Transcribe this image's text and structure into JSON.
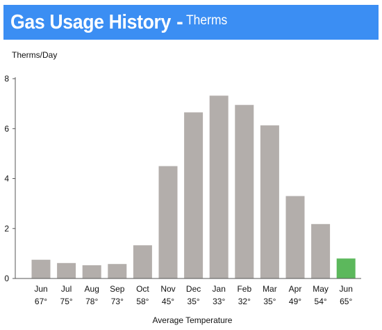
{
  "header": {
    "title": "Gas Usage History",
    "separator": "-",
    "unit": "Therms"
  },
  "chart_data": {
    "type": "bar",
    "title": "Gas Usage History",
    "subtitle": "Therms",
    "ylabel": "Therms/Day",
    "xlabel": "Average Temperature",
    "ylim": [
      0,
      8
    ],
    "yticks": [
      "0",
      "2",
      "4",
      "6",
      "8"
    ],
    "grid": false,
    "categories": [
      "Jun",
      "Jul",
      "Aug",
      "Sep",
      "Oct",
      "Nov",
      "Dec",
      "Jan",
      "Feb",
      "Mar",
      "Apr",
      "May",
      "Jun"
    ],
    "temperatures": [
      "67°",
      "75°",
      "78°",
      "73°",
      "58°",
      "45°",
      "35°",
      "33°",
      "32°",
      "35°",
      "49°",
      "54°",
      "65°"
    ],
    "values": [
      0.75,
      0.62,
      0.53,
      0.58,
      1.33,
      4.5,
      6.65,
      7.32,
      6.95,
      6.13,
      3.3,
      2.18,
      0.8
    ],
    "bar_colors": [
      "#b3aeab",
      "#b3aeab",
      "#b3aeab",
      "#b3aeab",
      "#b3aeab",
      "#b3aeab",
      "#b3aeab",
      "#b3aeab",
      "#b3aeab",
      "#b3aeab",
      "#b3aeab",
      "#b3aeab",
      "#5cb85c"
    ],
    "axis_color": "#555555"
  }
}
